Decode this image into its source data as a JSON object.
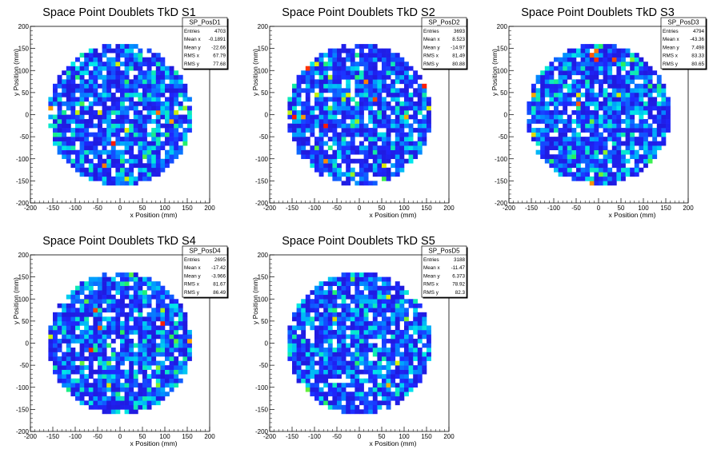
{
  "colors": {
    "low": "#1e22ff",
    "mid": "#00e0ff",
    "high": "#ff1500",
    "frame": "#000000"
  },
  "chart_data": [
    {
      "type": "heatmap",
      "title": "Space Point Doublets TkD S1",
      "xlabel": "x Position (mm)",
      "ylabel": "y Position (mm)",
      "xlim": [
        -200,
        200
      ],
      "ylim": [
        -200,
        200
      ],
      "xticks": [
        "-200",
        "-150",
        "-100",
        "-50",
        "0",
        "50",
        "100",
        "150",
        "200"
      ],
      "yticks": [
        "-200",
        "-150",
        "-100",
        "-50",
        "0",
        "50",
        "100",
        "150",
        "200"
      ],
      "footprint_radius": 160,
      "stats": {
        "name": "SP_PosD1",
        "rows": [
          {
            "label": "Entries",
            "value": "4703"
          },
          {
            "label": "Mean x",
            "value": "-0.1891"
          },
          {
            "label": "Mean y",
            "value": "-22.66"
          },
          {
            "label": "RMS x",
            "value": "67.79"
          },
          {
            "label": "RMS y",
            "value": "77.68"
          }
        ]
      }
    },
    {
      "type": "heatmap",
      "title": "Space Point Doublets TkD S2",
      "xlabel": "x Position (mm)",
      "ylabel": "y Position (mm)",
      "xlim": [
        -200,
        200
      ],
      "ylim": [
        -200,
        200
      ],
      "xticks": [
        "-200",
        "-150",
        "-100",
        "-50",
        "0",
        "50",
        "100",
        "150",
        "200"
      ],
      "yticks": [
        "-200",
        "-150",
        "-100",
        "-50",
        "0",
        "50",
        "100",
        "150",
        "200"
      ],
      "footprint_radius": 160,
      "stats": {
        "name": "SP_PosD2",
        "rows": [
          {
            "label": "Entries",
            "value": "3693"
          },
          {
            "label": "Mean x",
            "value": "8.523"
          },
          {
            "label": "Mean y",
            "value": "-14.97"
          },
          {
            "label": "RMS x",
            "value": "81.49"
          },
          {
            "label": "RMS y",
            "value": "80.88"
          }
        ]
      }
    },
    {
      "type": "heatmap",
      "title": "Space Point Doublets TkD S3",
      "xlabel": "x Position (mm)",
      "ylabel": "y Position (mm)",
      "xlim": [
        -200,
        200
      ],
      "ylim": [
        -200,
        200
      ],
      "xticks": [
        "-200",
        "-150",
        "-100",
        "-50",
        "0",
        "50",
        "100",
        "150",
        "200"
      ],
      "yticks": [
        "-200",
        "-150",
        "-100",
        "-50",
        "0",
        "50",
        "100",
        "150",
        "200"
      ],
      "footprint_radius": 160,
      "stats": {
        "name": "SP_PosD3",
        "rows": [
          {
            "label": "Entries",
            "value": "4794"
          },
          {
            "label": "Mean x",
            "value": "-43.36"
          },
          {
            "label": "Mean y",
            "value": "7.498"
          },
          {
            "label": "RMS x",
            "value": "83.33"
          },
          {
            "label": "RMS y",
            "value": "80.65"
          }
        ]
      }
    },
    {
      "type": "heatmap",
      "title": "Space Point Doublets TkD S4",
      "xlabel": "x Position (mm)",
      "ylabel": "y Position (mm)",
      "xlim": [
        -200,
        200
      ],
      "ylim": [
        -200,
        200
      ],
      "xticks": [
        "-200",
        "-150",
        "-100",
        "-50",
        "0",
        "50",
        "100",
        "150",
        "200"
      ],
      "yticks": [
        "-200",
        "-150",
        "-100",
        "-50",
        "0",
        "50",
        "100",
        "150",
        "200"
      ],
      "footprint_radius": 160,
      "stats": {
        "name": "SP_PosD4",
        "rows": [
          {
            "label": "Entries",
            "value": "2695"
          },
          {
            "label": "Mean x",
            "value": "-17.42"
          },
          {
            "label": "Mean y",
            "value": "-3.966"
          },
          {
            "label": "RMS x",
            "value": "81.67"
          },
          {
            "label": "RMS y",
            "value": "86.49"
          }
        ]
      }
    },
    {
      "type": "heatmap",
      "title": "Space Point Doublets TkD S5",
      "xlabel": "x Position (mm)",
      "ylabel": "y Position (mm)",
      "xlim": [
        -200,
        200
      ],
      "ylim": [
        -200,
        200
      ],
      "xticks": [
        "-200",
        "-150",
        "-100",
        "-50",
        "0",
        "50",
        "100",
        "150",
        "200"
      ],
      "yticks": [
        "-200",
        "-150",
        "-100",
        "-50",
        "0",
        "50",
        "100",
        "150",
        "200"
      ],
      "footprint_radius": 160,
      "stats": {
        "name": "SP_PosD5",
        "rows": [
          {
            "label": "Entries",
            "value": "3188"
          },
          {
            "label": "Mean x",
            "value": "-11.47"
          },
          {
            "label": "Mean y",
            "value": "6.373"
          },
          {
            "label": "RMS x",
            "value": "78.92"
          },
          {
            "label": "RMS y",
            "value": "82.3"
          }
        ]
      }
    }
  ]
}
